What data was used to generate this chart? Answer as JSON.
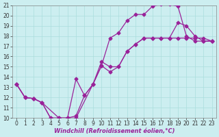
{
  "xlabel": "Windchill (Refroidissement éolien,°C)",
  "xlim": [
    -0.5,
    23.5
  ],
  "ylim": [
    10,
    21
  ],
  "xticks": [
    0,
    1,
    2,
    3,
    4,
    5,
    6,
    7,
    8,
    9,
    10,
    11,
    12,
    13,
    14,
    15,
    16,
    17,
    18,
    19,
    20,
    21,
    22,
    23
  ],
  "yticks": [
    10,
    11,
    12,
    13,
    14,
    15,
    16,
    17,
    18,
    19,
    20,
    21
  ],
  "bg_color": "#cceef0",
  "grid_color": "#aadddd",
  "line_color": "#992299",
  "line1_x": [
    0,
    1,
    2,
    3,
    4,
    5,
    6,
    7,
    8,
    9,
    10,
    11,
    12,
    13,
    14,
    15,
    16,
    17,
    18,
    19,
    20,
    21,
    22,
    23
  ],
  "line1_y": [
    13.3,
    12.0,
    11.9,
    11.5,
    10.0,
    10.0,
    10.0,
    10.2,
    12.2,
    13.3,
    15.1,
    17.8,
    18.3,
    19.5,
    20.1,
    20.1,
    20.9,
    21.1,
    21.1,
    20.9,
    18.0,
    17.5,
    17.5,
    17.5
  ],
  "line2_x": [
    0,
    1,
    2,
    3,
    4,
    5,
    6,
    7,
    8,
    9,
    10,
    11,
    12,
    13,
    14,
    15,
    16,
    17,
    18,
    19,
    20,
    21,
    22,
    23
  ],
  "line2_y": [
    13.3,
    12.0,
    11.9,
    11.5,
    10.0,
    10.0,
    10.0,
    13.8,
    12.2,
    13.3,
    15.5,
    15.0,
    15.0,
    16.5,
    17.2,
    17.8,
    17.8,
    17.8,
    17.8,
    19.3,
    19.0,
    18.0,
    17.5,
    17.5
  ],
  "line3_x": [
    0,
    1,
    2,
    3,
    5,
    6,
    7,
    9,
    10,
    11,
    12,
    13,
    14,
    15,
    16,
    17,
    18,
    19,
    20,
    21,
    22,
    23
  ],
  "line3_y": [
    13.3,
    12.0,
    11.9,
    11.5,
    10.0,
    10.0,
    10.0,
    13.3,
    15.1,
    14.5,
    15.0,
    16.5,
    17.2,
    17.8,
    17.8,
    17.8,
    17.8,
    17.8,
    17.8,
    17.8,
    17.8,
    17.5
  ],
  "marker": "D",
  "marker_size": 2.5,
  "linewidth": 0.9,
  "xlabel_fontsize": 6,
  "tick_fontsize": 5.5
}
